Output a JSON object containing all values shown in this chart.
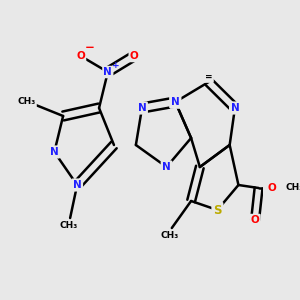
{
  "bg_color": "#e8e8e8",
  "bond_color": "#000000",
  "bond_width": 1.8,
  "dbo": 0.012,
  "atom_colors": {
    "N": "#2020ff",
    "O": "#ff0000",
    "S": "#bbaa00",
    "C": "#000000"
  },
  "fs": 7.5,
  "fs_small": 6.5,
  "figsize": [
    3.0,
    3.0
  ],
  "dpi": 100,
  "xlim": [
    0,
    300
  ],
  "ylim": [
    0,
    300
  ]
}
